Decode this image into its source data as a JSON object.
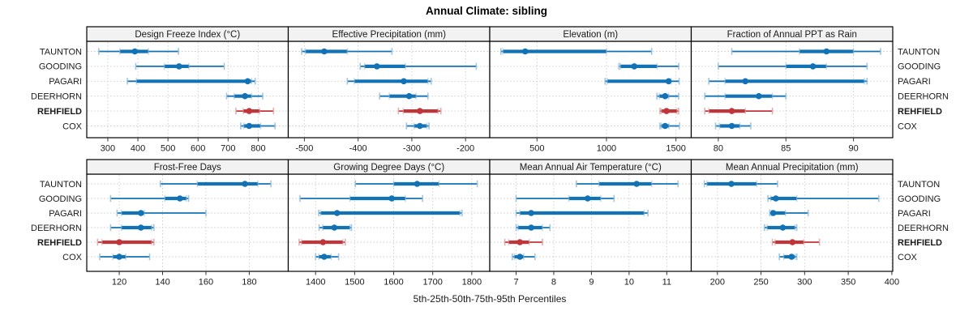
{
  "title": "Annual Climate: sibling",
  "caption": "5th-25th-50th-75th-95th Percentiles",
  "stations": [
    "TAUNTON",
    "GOODING",
    "PAGARI",
    "DEERHORN",
    "REHFIELD",
    "COX"
  ],
  "highlighted_station": "REHFIELD",
  "colors": {
    "blue_main": "#1272B6",
    "blue_light": "#8FBCDD",
    "red_main": "#C13539",
    "red_light": "#DFA0A2",
    "grid": "#CBCBCB",
    "strip_bg": "#F2F2F2",
    "panel_border": "#000000",
    "text": "#1A1A1A"
  },
  "chart_data": [
    {
      "type": "dotplot-percentiles",
      "row": 1,
      "col": 1,
      "title": "Design Freeze Index (°C)",
      "xlim": [
        230,
        900
      ],
      "ticks": [
        300,
        400,
        500,
        600,
        700,
        800
      ],
      "percentile_labels": [
        "p5",
        "p25",
        "p50",
        "p75",
        "p95"
      ],
      "series": [
        {
          "name": "TAUNTON",
          "color": "blue",
          "p": [
            270,
            340,
            390,
            435,
            535
          ]
        },
        {
          "name": "GOODING",
          "color": "blue",
          "p": [
            393,
            488,
            537,
            570,
            687
          ]
        },
        {
          "name": "PAGARI",
          "color": "blue",
          "p": [
            365,
            395,
            765,
            778,
            790
          ]
        },
        {
          "name": "DEERHORN",
          "color": "blue",
          "p": [
            695,
            720,
            756,
            778,
            815
          ]
        },
        {
          "name": "REHFIELD",
          "color": "red",
          "p": [
            726,
            750,
            770,
            805,
            851
          ]
        },
        {
          "name": "COX",
          "color": "blue",
          "p": [
            742,
            752,
            770,
            808,
            856
          ]
        }
      ]
    },
    {
      "type": "dotplot-percentiles",
      "row": 1,
      "col": 2,
      "title": "Effective Precipitation (mm)",
      "xlim": [
        -530,
        -155
      ],
      "ticks": [
        -500,
        -400,
        -300,
        -200
      ],
      "series": [
        {
          "name": "TAUNTON",
          "color": "blue",
          "p": [
            -505,
            -498,
            -463,
            -420,
            -337
          ]
        },
        {
          "name": "GOODING",
          "color": "blue",
          "p": [
            -396,
            -388,
            -365,
            -312,
            -180
          ]
        },
        {
          "name": "PAGARI",
          "color": "blue",
          "p": [
            -420,
            -407,
            -315,
            -270,
            -264
          ]
        },
        {
          "name": "DEERHORN",
          "color": "blue",
          "p": [
            -360,
            -342,
            -305,
            -292,
            -270
          ]
        },
        {
          "name": "REHFIELD",
          "color": "red",
          "p": [
            -325,
            -316,
            -285,
            -251,
            -246
          ]
        },
        {
          "name": "COX",
          "color": "blue",
          "p": [
            -310,
            -296,
            -285,
            -272,
            -268
          ]
        }
      ]
    },
    {
      "type": "dotplot-percentiles",
      "row": 1,
      "col": 3,
      "title": "Elevation (m)",
      "xlim": [
        160,
        1610
      ],
      "ticks": [
        500,
        1000,
        1500
      ],
      "series": [
        {
          "name": "TAUNTON",
          "color": "blue",
          "p": [
            240,
            255,
            415,
            1000,
            1325
          ]
        },
        {
          "name": "GOODING",
          "color": "blue",
          "p": [
            1090,
            1100,
            1200,
            1365,
            1520
          ]
        },
        {
          "name": "PAGARI",
          "color": "blue",
          "p": [
            990,
            1005,
            1447,
            1465,
            1523
          ]
        },
        {
          "name": "DEERHORN",
          "color": "blue",
          "p": [
            1363,
            1380,
            1422,
            1448,
            1519
          ]
        },
        {
          "name": "REHFIELD",
          "color": "red",
          "p": [
            1385,
            1395,
            1432,
            1508,
            1519
          ]
        },
        {
          "name": "COX",
          "color": "blue",
          "p": [
            1385,
            1395,
            1422,
            1450,
            1525
          ]
        }
      ]
    },
    {
      "type": "dotplot-percentiles",
      "row": 1,
      "col": 4,
      "title": "Fraction of Annual PPT as Rain",
      "xlim": [
        78,
        92.9
      ],
      "ticks": [
        80,
        85,
        90
      ],
      "series": [
        {
          "name": "TAUNTON",
          "color": "blue",
          "p": [
            81,
            86,
            88,
            90,
            92
          ]
        },
        {
          "name": "GOODING",
          "color": "blue",
          "p": [
            80,
            85,
            87,
            88,
            91
          ]
        },
        {
          "name": "PAGARI",
          "color": "blue",
          "p": [
            79.3,
            80.5,
            82,
            90.8,
            91
          ]
        },
        {
          "name": "DEERHORN",
          "color": "blue",
          "p": [
            79,
            80.5,
            83,
            84,
            85
          ]
        },
        {
          "name": "REHFIELD",
          "color": "red",
          "p": [
            79,
            79.3,
            81,
            82,
            84
          ]
        },
        {
          "name": "COX",
          "color": "blue",
          "p": [
            79.8,
            80.1,
            81,
            81.6,
            82.4
          ]
        }
      ]
    },
    {
      "type": "dotplot-percentiles",
      "row": 2,
      "col": 1,
      "title": "Frost-Free Days",
      "xlim": [
        105,
        198
      ],
      "ticks": [
        120,
        140,
        160,
        180
      ],
      "series": [
        {
          "name": "TAUNTON",
          "color": "blue",
          "p": [
            139,
            156,
            178,
            184,
            190
          ]
        },
        {
          "name": "GOODING",
          "color": "blue",
          "p": [
            116,
            141,
            148,
            151,
            152
          ]
        },
        {
          "name": "PAGARI",
          "color": "blue",
          "p": [
            119,
            121,
            130,
            131.5,
            160
          ]
        },
        {
          "name": "DEERHORN",
          "color": "blue",
          "p": [
            116,
            121,
            130,
            135,
            136
          ]
        },
        {
          "name": "REHFIELD",
          "color": "red",
          "p": [
            110,
            112,
            120,
            135,
            136
          ]
        },
        {
          "name": "COX",
          "color": "blue",
          "p": [
            111,
            117,
            120,
            123,
            134
          ]
        }
      ]
    },
    {
      "type": "dotplot-percentiles",
      "row": 2,
      "col": 2,
      "title": "Growing Degree Days (°C)",
      "xlim": [
        1330,
        1846
      ],
      "ticks": [
        1400,
        1500,
        1600,
        1700,
        1800
      ],
      "series": [
        {
          "name": "TAUNTON",
          "color": "blue",
          "p": [
            1502,
            1600,
            1660,
            1716,
            1814
          ]
        },
        {
          "name": "GOODING",
          "color": "blue",
          "p": [
            1360,
            1488,
            1595,
            1630,
            1674
          ]
        },
        {
          "name": "PAGARI",
          "color": "blue",
          "p": [
            1408,
            1413,
            1455,
            1770,
            1775
          ]
        },
        {
          "name": "DEERHORN",
          "color": "blue",
          "p": [
            1409,
            1418,
            1448,
            1488,
            1492
          ]
        },
        {
          "name": "REHFIELD",
          "color": "red",
          "p": [
            1358,
            1364,
            1419,
            1470,
            1476
          ]
        },
        {
          "name": "COX",
          "color": "blue",
          "p": [
            1400,
            1408,
            1422,
            1440,
            1459
          ]
        }
      ]
    },
    {
      "type": "dotplot-percentiles",
      "row": 2,
      "col": 3,
      "title": "Mean Annual Air Temperature (°C)",
      "xlim": [
        6.3,
        11.65
      ],
      "ticks": [
        7,
        8,
        9,
        10,
        11
      ],
      "series": [
        {
          "name": "TAUNTON",
          "color": "blue",
          "p": [
            8.6,
            9.2,
            10.2,
            10.6,
            11.3
          ]
        },
        {
          "name": "GOODING",
          "color": "blue",
          "p": [
            7.0,
            8.4,
            8.9,
            9.25,
            9.6
          ]
        },
        {
          "name": "PAGARI",
          "color": "blue",
          "p": [
            7.0,
            7.1,
            7.4,
            10.4,
            10.5
          ]
        },
        {
          "name": "DEERHORN",
          "color": "blue",
          "p": [
            7.0,
            7.05,
            7.4,
            7.7,
            7.9
          ]
        },
        {
          "name": "REHFIELD",
          "color": "red",
          "p": [
            6.7,
            6.8,
            7.1,
            7.35,
            7.7
          ]
        },
        {
          "name": "COX",
          "color": "blue",
          "p": [
            6.9,
            6.95,
            7.1,
            7.2,
            7.5
          ]
        }
      ]
    },
    {
      "type": "dotplot-percentiles",
      "row": 2,
      "col": 4,
      "title": "Mean Annual Precipitation (mm)",
      "xlim": [
        170,
        401
      ],
      "ticks": [
        200,
        250,
        300,
        350,
        400
      ],
      "series": [
        {
          "name": "TAUNTON",
          "color": "blue",
          "p": [
            185,
            188,
            216,
            245,
            269
          ]
        },
        {
          "name": "GOODING",
          "color": "blue",
          "p": [
            258,
            261,
            267,
            291,
            385
          ]
        },
        {
          "name": "PAGARI",
          "color": "blue",
          "p": [
            260,
            262,
            264,
            278,
            304
          ]
        },
        {
          "name": "DEERHORN",
          "color": "blue",
          "p": [
            254,
            257,
            275,
            289,
            291
          ]
        },
        {
          "name": "REHFIELD",
          "color": "red",
          "p": [
            263,
            266,
            286,
            299,
            317
          ]
        },
        {
          "name": "COX",
          "color": "blue",
          "p": [
            271,
            276,
            285,
            289,
            291
          ]
        }
      ]
    }
  ]
}
